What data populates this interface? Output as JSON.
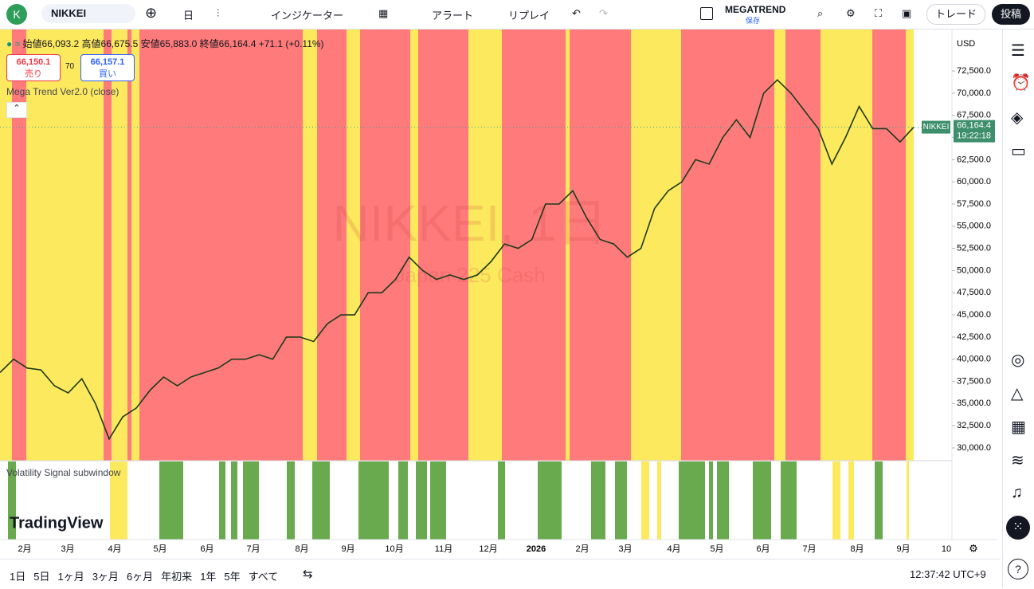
{
  "toolbar": {
    "avatar": "K",
    "symbol": "NIKKEI",
    "interval": "日",
    "indicators": "インジケーター",
    "alert": "アラート",
    "replay": "リプレイ",
    "layout_name": "MEGATREND",
    "layout_status": "保存",
    "trade": "トレード",
    "publish": "投稿"
  },
  "legend": {
    "ohlc": "始値66,093.2 高値66,675.5 安値65,883.0 終値66,164.4 +71.1 (+0.11%)",
    "sell_price": "66,150.1",
    "sell_label": "売り",
    "spread": "70",
    "buy_price": "66,157.1",
    "buy_label": "買い",
    "indicator": "Mega Trend Ver2.0 (close)"
  },
  "watermark": {
    "title": "NIKKEI, 1日",
    "subtitle": "Japan 225 Cash"
  },
  "chart": {
    "ylim": [
      28560,
      77180
    ],
    "yticks": [
      {
        "value": 30000,
        "label": "30,000.0"
      },
      {
        "value": 32500,
        "label": "32,500.0"
      },
      {
        "value": 35000,
        "label": "35,000.0"
      },
      {
        "value": 37500,
        "label": "37,500.0"
      },
      {
        "value": 40000,
        "label": "40,000.0"
      },
      {
        "value": 42500,
        "label": "42,500.0"
      },
      {
        "value": 45000,
        "label": "45,000.0"
      },
      {
        "value": 47500,
        "label": "47,500.0"
      },
      {
        "value": 50000,
        "label": "50,000.0"
      },
      {
        "value": 52500,
        "label": "52,500.0"
      },
      {
        "value": 55000,
        "label": "55,000.0"
      },
      {
        "value": 57500,
        "label": "57,500.0"
      },
      {
        "value": 60000,
        "label": "60,000.0"
      },
      {
        "value": 62500,
        "label": "62,500.0"
      },
      {
        "value": 65000,
        "label": "65,000.0"
      },
      {
        "value": 67500,
        "label": "67,500.0"
      },
      {
        "value": 70000,
        "label": "70,000.0"
      },
      {
        "value": 72500,
        "label": "72,500.0"
      }
    ],
    "values": [
      38500,
      40000,
      39000,
      38800,
      37000,
      36200,
      37800,
      35000,
      31000,
      33500,
      34500,
      36500,
      38000,
      37000,
      38000,
      38500,
      39000,
      40000,
      40000,
      40500,
      40000,
      42500,
      42500,
      42000,
      44000,
      45000,
      45000,
      47500,
      47500,
      49000,
      51500,
      50000,
      49000,
      49500,
      49000,
      49500,
      51000,
      53000,
      52500,
      53500,
      57500,
      57500,
      59000,
      56000,
      53500,
      53000,
      51500,
      52500,
      57000,
      59000,
      60000,
      62500,
      62000,
      65000,
      67000,
      65000,
      70000,
      71500,
      70000,
      68000,
      66000,
      62000,
      65000,
      68500,
      66000,
      66000,
      64500,
      66164.4
    ],
    "currency": "USD",
    "last_symbol": "NIKKEI",
    "last_price": {
      "value": 66164.4,
      "label": "66,164.4"
    },
    "countdown": "19:22:18",
    "subwindow_title": "Volatility Signal subwindow",
    "brand": "TradingView",
    "time_labels": [
      "2月",
      "3月",
      "4月",
      "5月",
      "6月",
      "7月",
      "8月",
      "9月",
      "10月",
      "11月",
      "12月",
      "2026",
      "2月",
      "3月",
      "4月",
      "5月",
      "6月",
      "7月",
      "8月",
      "9月",
      "10"
    ]
  },
  "bottom": {
    "ranges": [
      "1日",
      "5日",
      "1ヶ月",
      "3ヶ月",
      "6ヶ月",
      "年初来",
      "1年",
      "5年",
      "すべて"
    ],
    "clock": "12:37:42 UTC+9"
  }
}
